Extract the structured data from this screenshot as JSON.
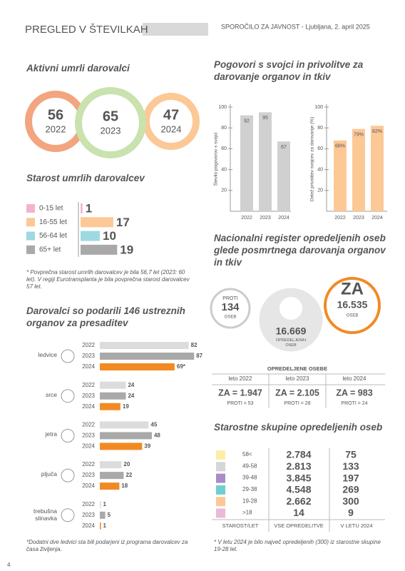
{
  "header": {
    "title": "PREGLED V ŠTEVILKAH",
    "subtitle": "SPOROČILO ZA JAVNOST - Ljubljana, 2. april 2025",
    "page": "4"
  },
  "active_donors": {
    "title": "Aktivni umrli darovalci",
    "items": [
      {
        "value": "56",
        "year": "2022",
        "color": "#f2a57f"
      },
      {
        "value": "65",
        "year": "2023",
        "color": "#c9e2ae"
      },
      {
        "value": "47",
        "year": "2024",
        "color": "#fcc896"
      }
    ]
  },
  "age": {
    "title": "Starost umrlih darovalcev",
    "categories": [
      "0-15 let",
      "16-55 let",
      "56-64 let",
      "65+ let"
    ],
    "values": [
      1,
      17,
      10,
      19
    ],
    "colors": [
      "#f4b3cd",
      "#fcc896",
      "#9ed9e1",
      "#a9a9a9"
    ],
    "note": "* Povprečna starost umrlih darovalcev je bila 56,7 let (2023: 60 let). V regiji Eurotransplanta je bila povprečna starost darovalcev 57 let."
  },
  "organs": {
    "title": "Darovalci so podarili 146 ustreznih organov za presaditev",
    "years": [
      "2022",
      "2023",
      "2024"
    ],
    "colors": [
      "#dcdcdc",
      "#a9a9a9",
      "#f28a24"
    ],
    "items": [
      {
        "name": "ledvice",
        "values": [
          82,
          87,
          69
        ],
        "value_labels": [
          "82",
          "87",
          "69*"
        ]
      },
      {
        "name": "srce",
        "values": [
          24,
          24,
          19
        ]
      },
      {
        "name": "jetra",
        "values": [
          45,
          48,
          39
        ]
      },
      {
        "name": "pljuča",
        "values": [
          20,
          22,
          18
        ]
      },
      {
        "name": "trebušna slinavka",
        "values": [
          1,
          5,
          1
        ]
      }
    ],
    "note": "*Dodatni dve ledvici sta bili podarjeni iz programa darovalcev za časa življenja."
  },
  "conversations": {
    "title": "Pogovori s svojci in privolitve za darovanje organov in tkiv",
    "charts": [
      {
        "ylabel": "Število pogovorov s svojci",
        "categories": [
          "2022",
          "2023",
          "2024"
        ],
        "values": [
          92,
          95,
          67
        ],
        "color": "#d0d0d0",
        "ylim": [
          0,
          100
        ],
        "yticks": [
          20,
          40,
          60,
          80,
          100
        ]
      },
      {
        "ylabel": "Delež privolitev svojcev za darovanje (%)",
        "categories": [
          "2022",
          "2023",
          "2024"
        ],
        "values": [
          68,
          79,
          82
        ],
        "value_labels": [
          "68%",
          "79%",
          "82%"
        ],
        "color": "#fcc896",
        "ylim": [
          0,
          100
        ],
        "yticks": [
          20,
          40,
          60,
          80,
          100
        ]
      }
    ]
  },
  "register": {
    "title": "Nacionalni register opredeljenih oseb glede posmrtnega darovanja organov in tkiv",
    "against": {
      "label": "PROTI",
      "value": "134",
      "unit": "OSEB"
    },
    "total": {
      "value": "16.669",
      "label": "OPREDELJENIH OSEB"
    },
    "for": {
      "label": "ZA",
      "value": "16.535",
      "unit": "OSEB"
    },
    "table": {
      "title": "OPREDELJENE OSEBE",
      "columns": [
        {
          "year": "leto 2022",
          "za": "ZA = 1.947",
          "proti": "PROTI = 53"
        },
        {
          "year": "leto 2023",
          "za": "ZA = 2.105",
          "proti": "PROTI = 28"
        },
        {
          "year": "leto 2024",
          "za": "ZA = 983",
          "proti": "PROTI = 24"
        }
      ]
    }
  },
  "age_groups": {
    "title": "Starostne skupine opredeljenih oseb",
    "headers": [
      "STAROST/LET",
      "VSE OPREDELITVE",
      "V LETU 2024"
    ],
    "rows": [
      {
        "group": "58<",
        "all": "2.784",
        "year": "75",
        "color": "#fdeea6"
      },
      {
        "group": "49-58",
        "all": "2.813",
        "year": "133",
        "color": "#d6d6d6"
      },
      {
        "group": "39-48",
        "all": "3.845",
        "year": "197",
        "color": "#a98cc6"
      },
      {
        "group": "29-38",
        "all": "4.548",
        "year": "269",
        "color": "#6fcfd0"
      },
      {
        "group": "19-28",
        "all": "2.662",
        "year": "300",
        "color": "#fcc896"
      },
      {
        "group": ">18",
        "all": "14",
        "year": "9",
        "color": "#ebb8da"
      }
    ],
    "note": "* V letu 2024 je bilo največ opredeljenih (300) iz starostne skupine 19-28 let."
  }
}
